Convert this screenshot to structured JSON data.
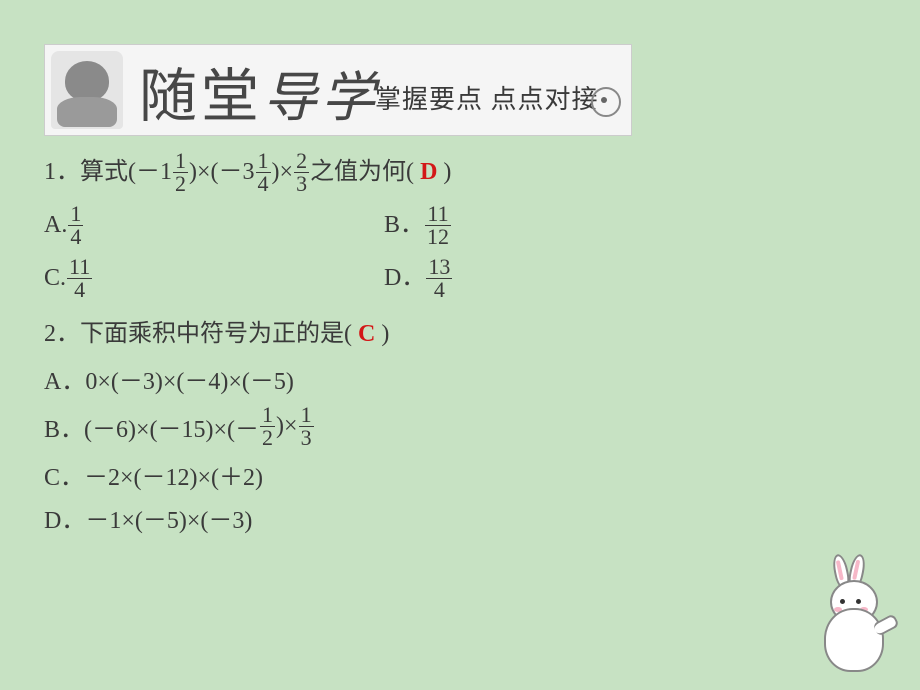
{
  "colors": {
    "page_bg": "#c7e2c3",
    "text": "#3a3a3a",
    "answer": "#d31818",
    "banner_bg": "#f5f5f5"
  },
  "banner": {
    "big1": "随",
    "big2": "堂",
    "script1": "导",
    "script2": "学",
    "subtitle": "掌握要点  点点对接"
  },
  "q1": {
    "prefix": "1．算式(－1",
    "f1": {
      "n": "1",
      "d": "2"
    },
    "mid1": ")×(－3",
    "f2": {
      "n": "1",
      "d": "4"
    },
    "mid2": ")×",
    "f3": {
      "n": "2",
      "d": "3"
    },
    "suffix": "之值为何(",
    "answer": "D",
    "close": ")",
    "options": {
      "A": {
        "label": "A.",
        "frac": {
          "n": "1",
          "d": "4"
        }
      },
      "B": {
        "label": "B．",
        "frac": {
          "n": "11",
          "d": "12"
        }
      },
      "C": {
        "label": "C.",
        "frac": {
          "n": "11",
          "d": "4"
        }
      },
      "D": {
        "label": "D．",
        "frac": {
          "n": "13",
          "d": "4"
        }
      }
    }
  },
  "q2": {
    "stem_pre": "2．下面乘积中符号为正的是(",
    "answer": "C",
    "close": ")",
    "A": "A．0×(－3)×(－4)×(－5)",
    "B_pre": "B．(－6)×(－15)×(－",
    "B_f1": {
      "n": "1",
      "d": "2"
    },
    "B_mid": ")×",
    "B_f2": {
      "n": "1",
      "d": "3"
    },
    "C": "C．－2×(－12)×(＋2)",
    "D": "D．－1×(－5)×(－3)"
  }
}
